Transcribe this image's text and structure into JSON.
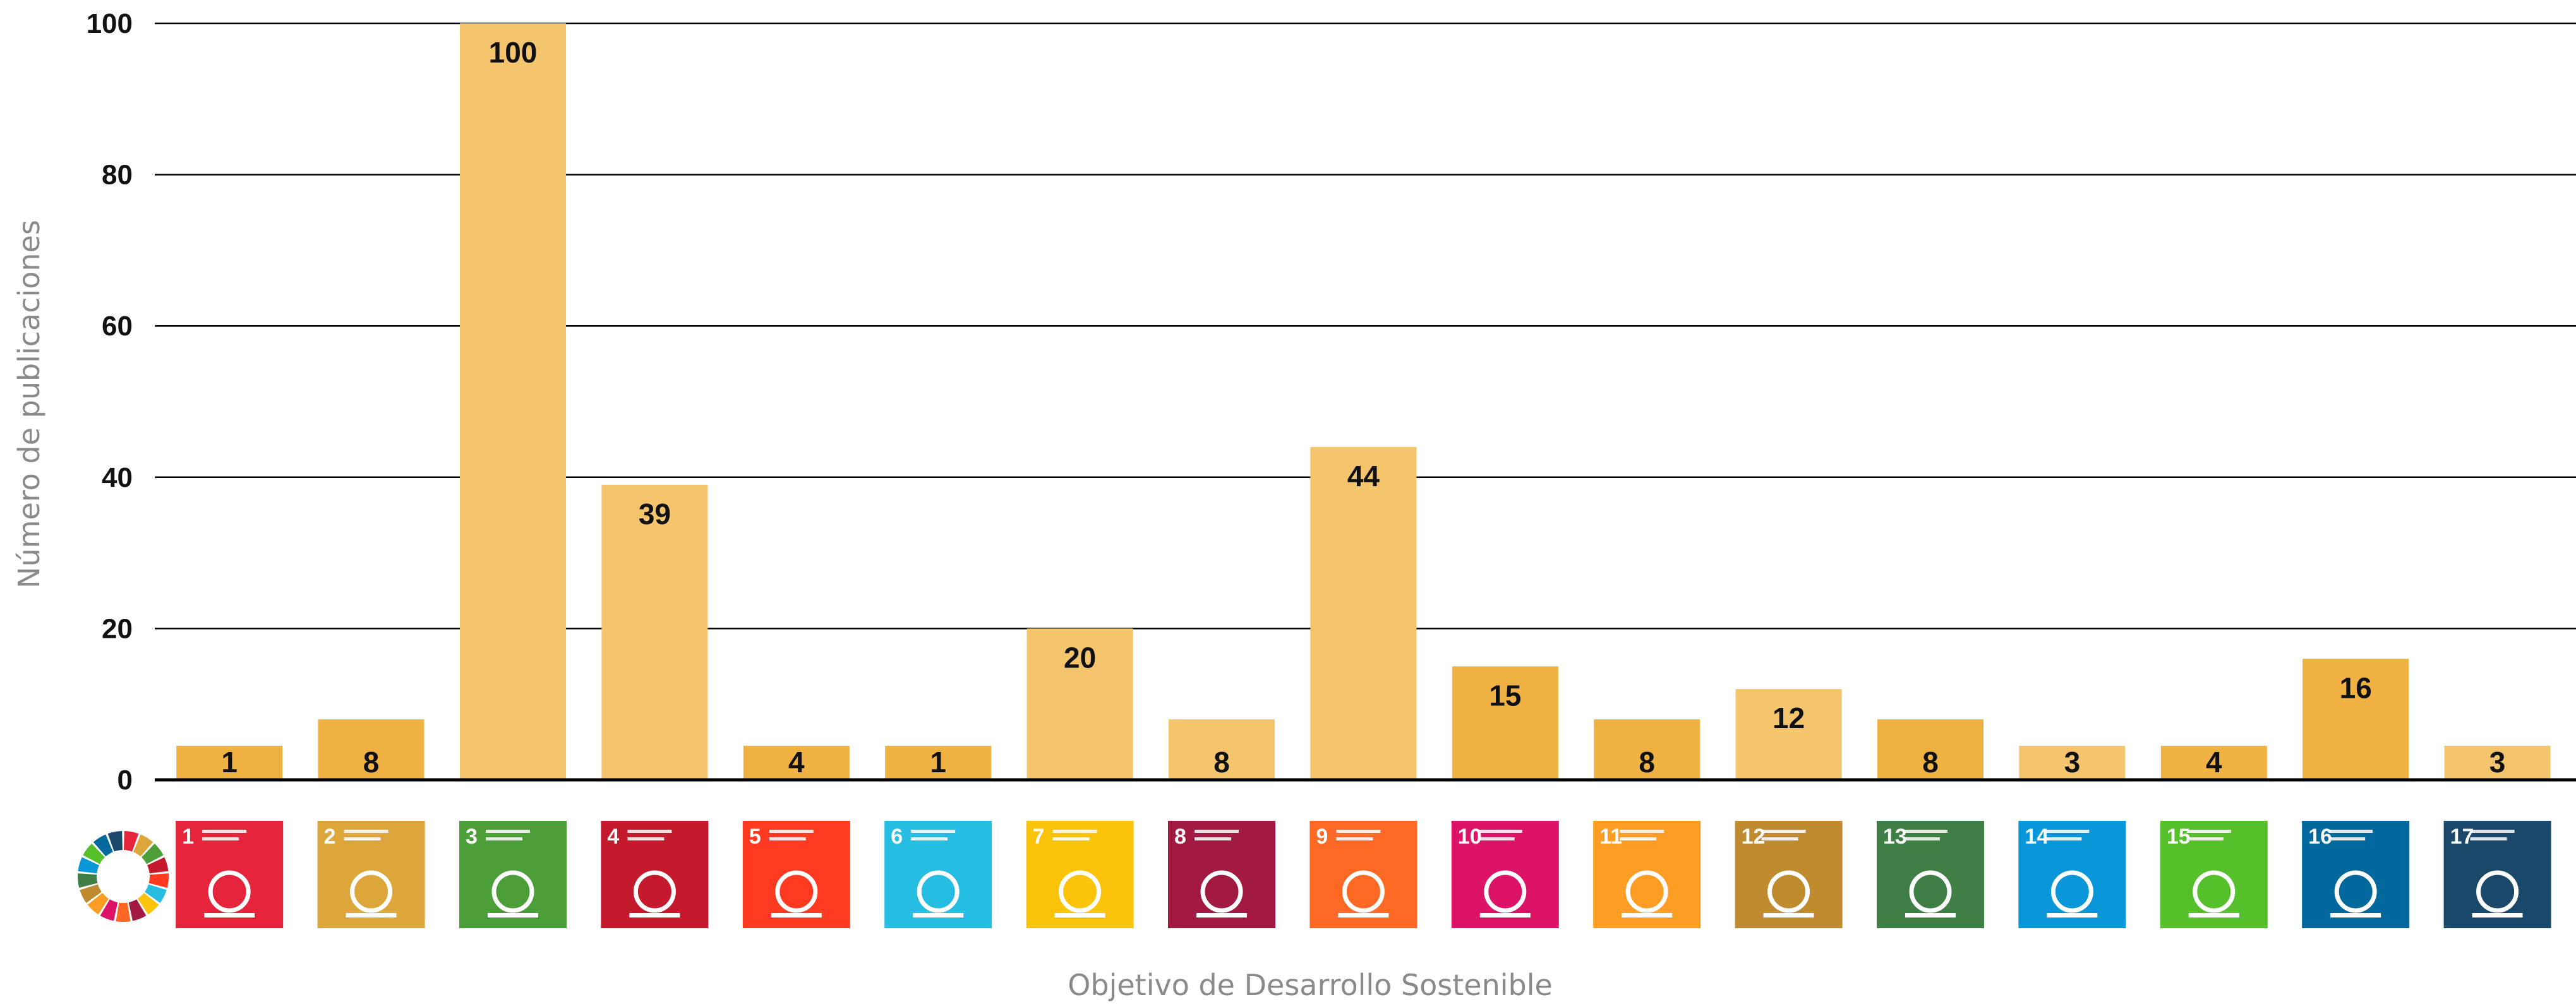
{
  "chart_data": {
    "type": "bar",
    "xlabel": "Objetivo de Desarrollo Sostenible",
    "ylabel": "Número de publicaciones",
    "ylim": [
      0,
      100
    ],
    "yticks": [
      0,
      20,
      40,
      60,
      80,
      100
    ],
    "grid": true,
    "categories": [
      "1",
      "2",
      "3",
      "4",
      "5",
      "6",
      "7",
      "8",
      "9",
      "10",
      "11",
      "12",
      "13",
      "14",
      "15",
      "16",
      "17"
    ],
    "values": [
      1,
      8,
      100,
      39,
      4,
      1,
      20,
      8,
      44,
      15,
      8,
      12,
      8,
      3,
      4,
      16,
      3
    ],
    "bar_colors": [
      "#EFB243",
      "#EFB243",
      "#F4C56D",
      "#F4C56D",
      "#EFB243",
      "#EFB243",
      "#F4C56D",
      "#F4C56D",
      "#F4C56D",
      "#EFB243",
      "#EFB243",
      "#F4C56D",
      "#EFB243",
      "#F4C56D",
      "#EFB243",
      "#EFB243",
      "#F4C56D"
    ],
    "sdg_icons": [
      {
        "number": "1",
        "color": "#E5243B",
        "icon": "people-family-icon"
      },
      {
        "number": "2",
        "color": "#DDA63A",
        "icon": "food-bowl-icon"
      },
      {
        "number": "3",
        "color": "#4C9F38",
        "icon": "heartbeat-icon"
      },
      {
        "number": "4",
        "color": "#C5192D",
        "icon": "book-pencil-icon"
      },
      {
        "number": "5",
        "color": "#FF3A21",
        "icon": "gender-symbol-icon"
      },
      {
        "number": "6",
        "color": "#26BDE2",
        "icon": "water-drop-glass-icon"
      },
      {
        "number": "7",
        "color": "#FCC30B",
        "icon": "sun-power-icon"
      },
      {
        "number": "8",
        "color": "#A21942",
        "icon": "growth-chart-icon"
      },
      {
        "number": "9",
        "color": "#FD6925",
        "icon": "cubes-icon"
      },
      {
        "number": "10",
        "color": "#DD1367",
        "icon": "equality-arrows-icon"
      },
      {
        "number": "11",
        "color": "#FD9D24",
        "icon": "city-buildings-icon"
      },
      {
        "number": "12",
        "color": "#BF8B2E",
        "icon": "infinity-icon"
      },
      {
        "number": "13",
        "color": "#3F7E44",
        "icon": "eye-globe-icon"
      },
      {
        "number": "14",
        "color": "#0A97D9",
        "icon": "fish-waves-icon"
      },
      {
        "number": "15",
        "color": "#56C02B",
        "icon": "tree-birds-icon"
      },
      {
        "number": "16",
        "color": "#00689D",
        "icon": "dove-gavel-icon"
      },
      {
        "number": "17",
        "color": "#19486A",
        "icon": "partnership-flower-icon"
      }
    ],
    "sdg_wheel_colors": [
      "#E5243B",
      "#DDA63A",
      "#4C9F38",
      "#C5192D",
      "#FF3A21",
      "#26BDE2",
      "#FCC30B",
      "#A21942",
      "#FD6925",
      "#DD1367",
      "#FD9D24",
      "#BF8B2E",
      "#3F7E44",
      "#0A97D9",
      "#56C02B",
      "#00689D",
      "#19486A"
    ]
  }
}
